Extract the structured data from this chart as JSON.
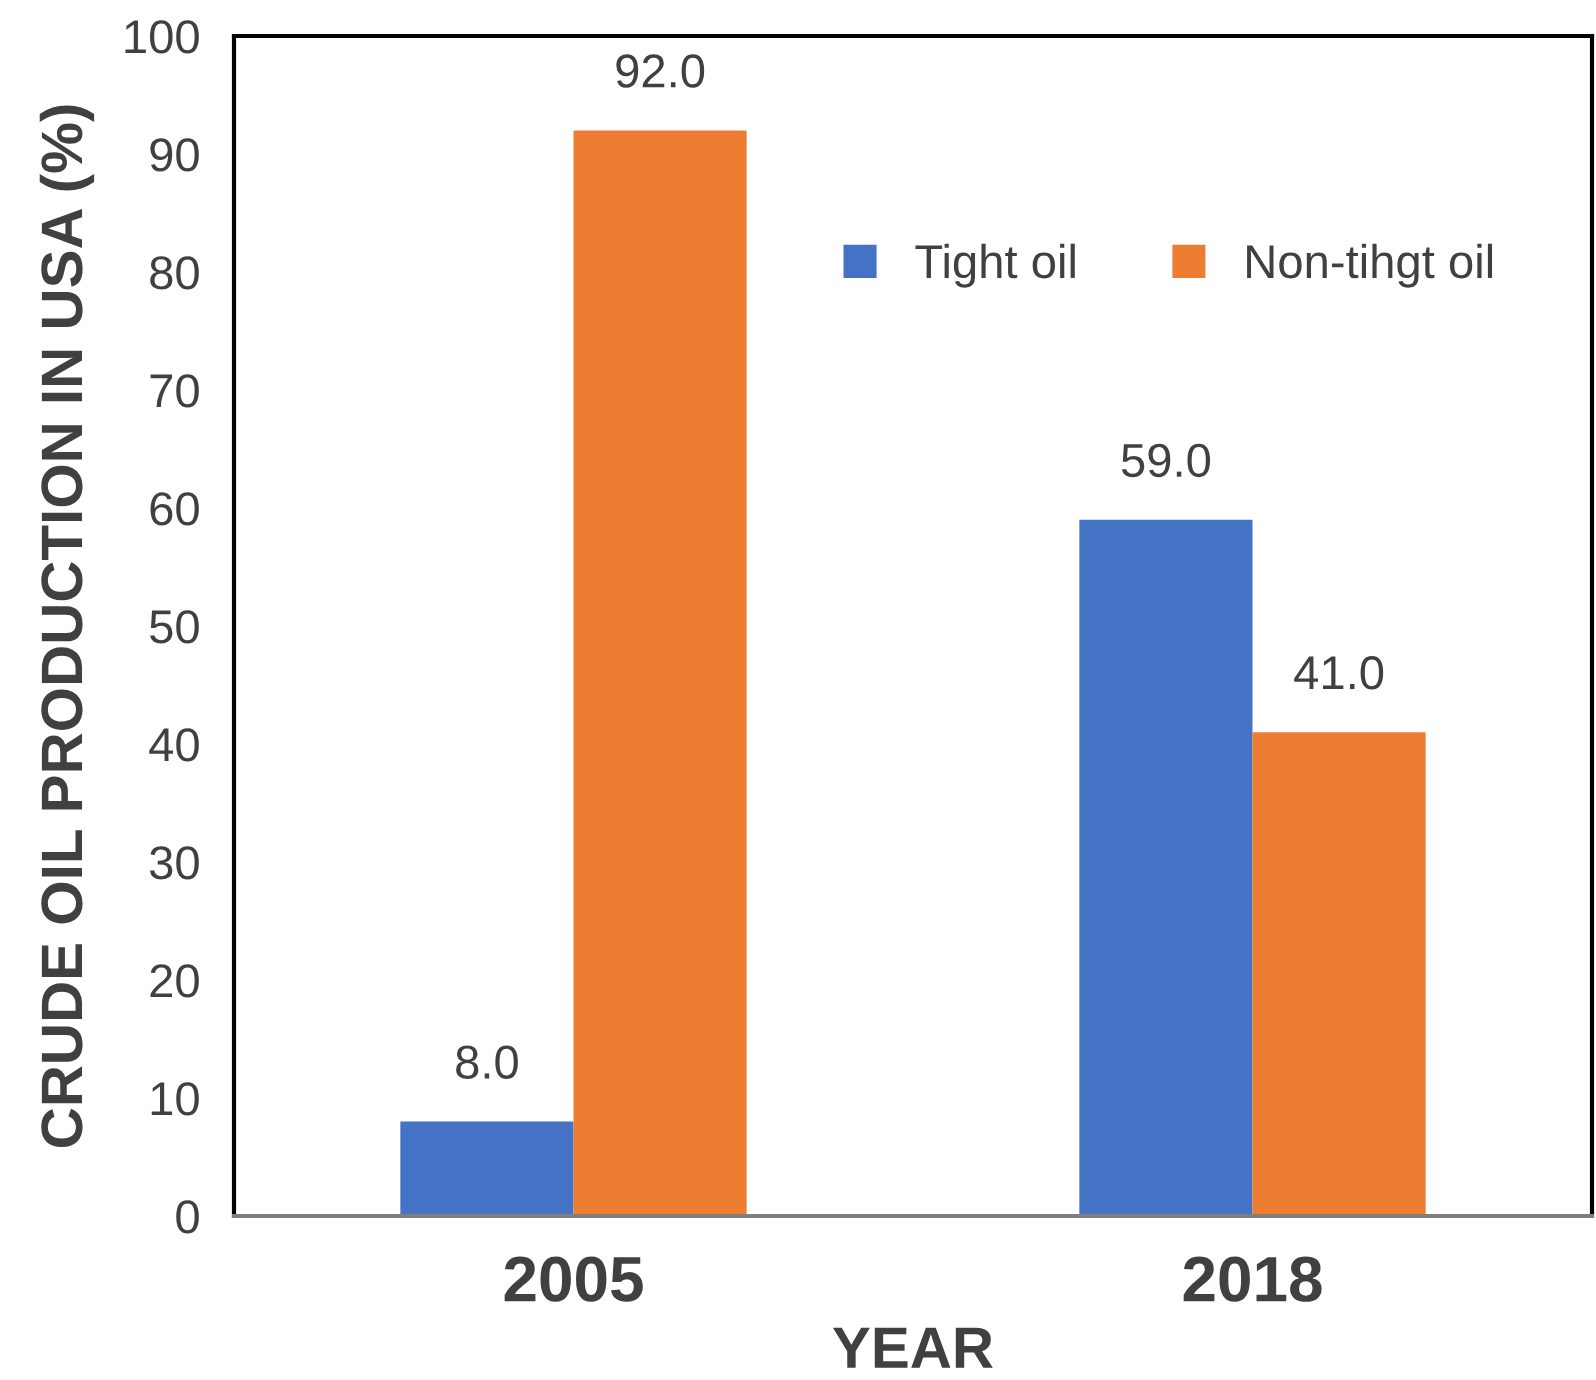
{
  "chart_data": {
    "type": "bar",
    "xlabel": "YEAR",
    "ylabel": "CRUDE OIL PRODUCTION IN USA (%)",
    "categories": [
      "2005",
      "2018"
    ],
    "series": [
      {
        "name": "Tight oil",
        "color": "#4472c4",
        "values": [
          8,
          59
        ],
        "value_labels": [
          "8.0",
          "59.0"
        ]
      },
      {
        "name": "Non-tihgt oil",
        "color": "#ed7d31",
        "values": [
          92,
          41
        ],
        "value_labels": [
          "92.0",
          "41.0"
        ]
      }
    ],
    "ylim": [
      0,
      100
    ],
    "yticks": [
      0,
      10,
      20,
      30,
      40,
      50,
      60,
      70,
      80,
      90,
      100
    ],
    "grid": false,
    "legend": "top right"
  }
}
